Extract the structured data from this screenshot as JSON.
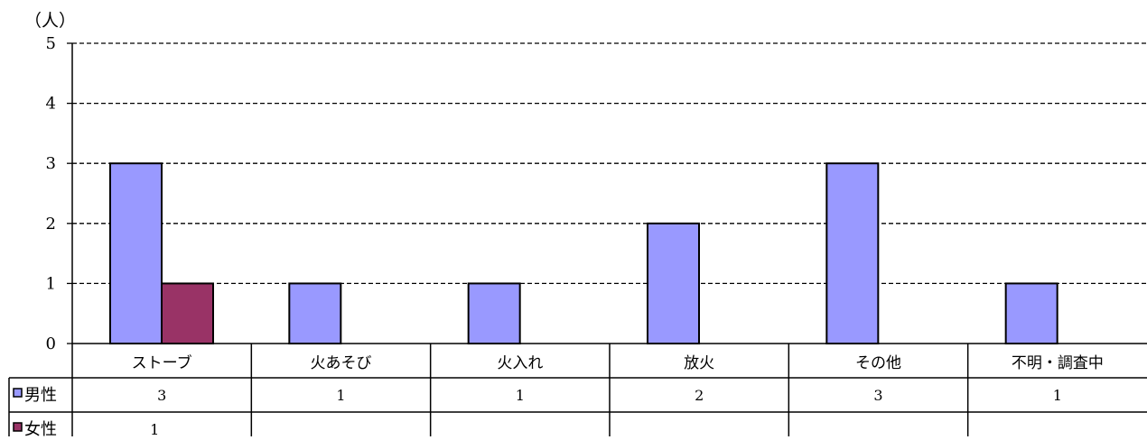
{
  "chart_data": {
    "type": "bar",
    "y_unit_label": "（人）",
    "categories": [
      "ストーブ",
      "火あそび",
      "火入れ",
      "放火",
      "その他",
      "不明・調査中"
    ],
    "series": [
      {
        "name": "男性",
        "color": "#9999ff",
        "values": [
          3,
          1,
          1,
          2,
          3,
          1
        ]
      },
      {
        "name": "女性",
        "color": "#993366",
        "values": [
          1,
          null,
          null,
          null,
          null,
          null
        ]
      }
    ],
    "ylim": [
      0,
      5
    ],
    "yticks": [
      "0",
      "1",
      "2",
      "3",
      "4",
      "5"
    ],
    "grid": "dashed",
    "data_table": true,
    "legend": "data-table-left"
  }
}
